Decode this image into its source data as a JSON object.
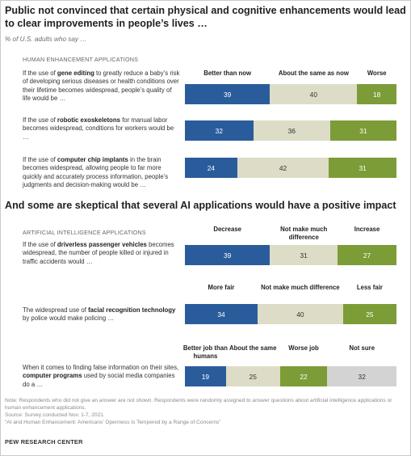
{
  "title": "Public not convinced that certain physical and cognitive enhancements would lead to clear improvements in people’s lives …",
  "subtitle": "% of U.S. adults who say …",
  "sections": [
    {
      "label": "HUMAN ENHANCEMENT APPLICATIONS"
    },
    {
      "heading": "And some are skeptical that several AI applications would have a positive impact",
      "label": "ARTIFICIAL INTELLIGENCE APPLICATIONS"
    }
  ],
  "colors": {
    "c1": "#2a5c9c",
    "c2": "#dddcc6",
    "c3": "#7c9c37",
    "c4": "#d3d3d3"
  },
  "chart_data": [
    {
      "type": "bar",
      "stacked": true,
      "orientation": "horizontal",
      "section": "HUMAN ENHANCEMENT APPLICATIONS",
      "categories": [
        "Better than now",
        "About the same as now",
        "Worse"
      ],
      "rows": [
        {
          "question_pre": "If the use of ",
          "question_bold": "gene editing",
          "question_post": " to greatly reduce a baby’s risk of developing serious diseases or health conditions over their lifetime becomes widespread, people’s quality of life would be …",
          "values": [
            39,
            40,
            18
          ]
        },
        {
          "question_pre": "If the use of ",
          "question_bold": "robotic exoskeletons",
          "question_post": " for manual labor becomes widespread, conditions for workers would be …",
          "values": [
            32,
            36,
            31
          ]
        },
        {
          "question_pre": "If the use of ",
          "question_bold": "computer chip implants",
          "question_post": " in the brain becomes widespread, allowing people to far more quickly and accurately process information, people’s judgments and decision-making would be …",
          "values": [
            24,
            42,
            31
          ]
        }
      ]
    },
    {
      "type": "bar",
      "stacked": true,
      "orientation": "horizontal",
      "section": "ARTIFICIAL INTELLIGENCE APPLICATIONS",
      "categories": [
        "Decrease",
        "Not make much difference",
        "Increase"
      ],
      "rows": [
        {
          "question_pre": "If the use of ",
          "question_bold": "driverless passenger vehicles",
          "question_post": " becomes widespread, the number of people killed or injured in traffic accidents would …",
          "values": [
            39,
            31,
            27
          ]
        }
      ]
    },
    {
      "type": "bar",
      "stacked": true,
      "orientation": "horizontal",
      "section": "ARTIFICIAL INTELLIGENCE APPLICATIONS",
      "categories": [
        "More fair",
        "Not make much difference",
        "Less fair"
      ],
      "rows": [
        {
          "question_pre": "The widespread use of ",
          "question_bold": "facial recognition technology",
          "question_post": " by police would make policing …",
          "values": [
            34,
            40,
            25
          ]
        }
      ]
    },
    {
      "type": "bar",
      "stacked": true,
      "orientation": "horizontal",
      "section": "ARTIFICIAL INTELLIGENCE APPLICATIONS",
      "categories": [
        "Better job than humans",
        "About the same",
        "Worse job",
        "Not sure"
      ],
      "rows": [
        {
          "question_pre": "When it comes to finding false information on their sites, ",
          "question_bold": "computer programs",
          "question_post": " used by social media companies do a …",
          "values": [
            19,
            25,
            22,
            32
          ]
        }
      ]
    }
  ],
  "notes": [
    "Note: Respondents who did not give an answer are not shown. Respondents were randomly assigned to answer questions about artificial intelligence applications or human enhancement applications.",
    "Source: Survey conducted Nov. 1-7, 2021.",
    "“AI and Human Enhancement: Americans’ Openness Is Tempered by a Range of Concerns”"
  ],
  "brand": "PEW RESEARCH CENTER"
}
